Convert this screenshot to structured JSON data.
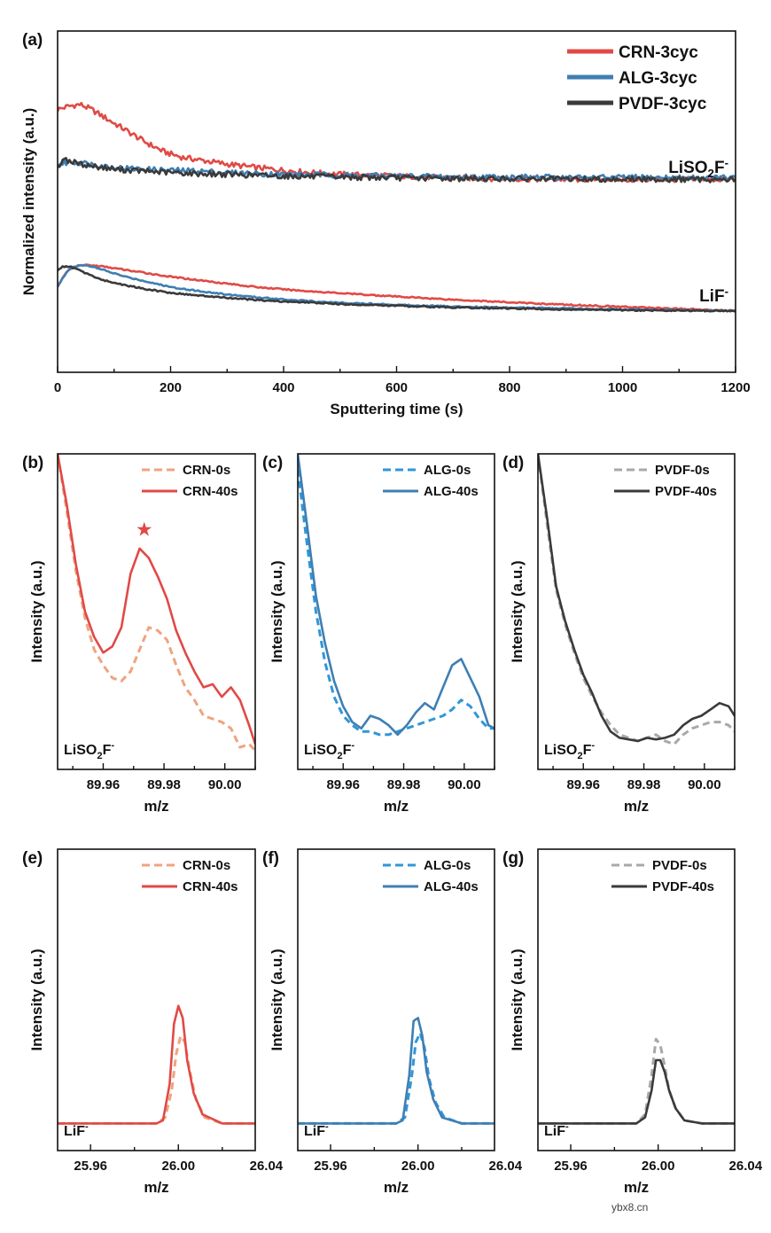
{
  "colors": {
    "crn": "#e04a46",
    "crn_light": "#f0a37f",
    "alg": "#3f7fb3",
    "alg_light": "#2f97d8",
    "pvdf": "#3a3a3a",
    "pvdf_light": "#a8a8a8"
  },
  "watermark": "ybx8.cn",
  "chart_data": [
    {
      "id": "a",
      "panel_label": "(a)",
      "type": "line",
      "xlabel": "Sputtering time (s)",
      "ylabel": "Normalized intensity (a.u.)",
      "xlim": [
        0,
        1200
      ],
      "ylim": [
        0,
        1
      ],
      "xticks": [
        0,
        200,
        400,
        600,
        800,
        1000,
        1200
      ],
      "xtick_labels": [
        "0",
        "200",
        "400",
        "600",
        "800",
        "1000",
        "1200"
      ],
      "species_labels": [
        {
          "base": "LiSO",
          "sub": "2",
          "rest": "F",
          "sup": "-"
        },
        {
          "base": "LiF",
          "sub": "",
          "rest": "",
          "sup": "-"
        }
      ],
      "series": [
        {
          "name": "CRN-3cyc",
          "color_key": "crn",
          "group": "LiSO2F-",
          "x": [
            0,
            20,
            40,
            60,
            80,
            100,
            130,
            160,
            190,
            220,
            260,
            300,
            350,
            400,
            450,
            500,
            600,
            700,
            800,
            900,
            1000,
            1100,
            1200
          ],
          "y": [
            0.77,
            0.78,
            0.785,
            0.77,
            0.75,
            0.73,
            0.7,
            0.67,
            0.645,
            0.63,
            0.62,
            0.61,
            0.6,
            0.592,
            0.585,
            0.58,
            0.575,
            0.57,
            0.567,
            0.565,
            0.565,
            0.565,
            0.565
          ]
        },
        {
          "name": "ALG-3cyc",
          "color_key": "alg",
          "group": "LiSO2F-",
          "x": [
            0,
            20,
            40,
            60,
            80,
            100,
            150,
            200,
            250,
            300,
            400,
            500,
            600,
            700,
            800,
            900,
            1000,
            1100,
            1200
          ],
          "y": [
            0.61,
            0.615,
            0.615,
            0.61,
            0.605,
            0.6,
            0.595,
            0.592,
            0.59,
            0.585,
            0.58,
            0.578,
            0.575,
            0.573,
            0.572,
            0.571,
            0.571,
            0.57,
            0.57
          ]
        },
        {
          "name": "PVDF-3cyc",
          "color_key": "pvdf",
          "group": "LiSO2F-",
          "x": [
            0,
            10,
            20,
            40,
            60,
            80,
            100,
            150,
            200,
            250,
            300,
            400,
            500,
            600,
            700,
            800,
            900,
            1000,
            1100,
            1200
          ],
          "y": [
            0.6,
            0.625,
            0.62,
            0.61,
            0.605,
            0.6,
            0.595,
            0.59,
            0.585,
            0.582,
            0.58,
            0.575,
            0.572,
            0.57,
            0.568,
            0.567,
            0.566,
            0.566,
            0.565,
            0.565
          ]
        },
        {
          "name": "CRN-3cyc",
          "color_key": "crn",
          "group": "LiF-",
          "x": [
            0,
            10,
            20,
            30,
            50,
            80,
            120,
            160,
            200,
            250,
            300,
            350,
            400,
            450,
            500,
            600,
            700,
            800,
            900,
            1000,
            1100,
            1200
          ],
          "y": [
            0.25,
            0.28,
            0.3,
            0.31,
            0.315,
            0.31,
            0.3,
            0.29,
            0.28,
            0.27,
            0.26,
            0.25,
            0.243,
            0.237,
            0.232,
            0.222,
            0.213,
            0.205,
            0.198,
            0.192,
            0.186,
            0.18
          ]
        },
        {
          "name": "ALG-3cyc",
          "color_key": "alg",
          "group": "LiF-",
          "x": [
            0,
            10,
            20,
            30,
            50,
            80,
            120,
            160,
            200,
            250,
            300,
            350,
            400,
            450,
            500,
            600,
            700,
            800,
            900,
            1000,
            1100,
            1200
          ],
          "y": [
            0.25,
            0.28,
            0.3,
            0.31,
            0.315,
            0.3,
            0.28,
            0.265,
            0.25,
            0.238,
            0.228,
            0.22,
            0.214,
            0.208,
            0.204,
            0.198,
            0.193,
            0.19,
            0.187,
            0.184,
            0.182,
            0.18
          ]
        },
        {
          "name": "PVDF-3cyc",
          "color_key": "pvdf",
          "group": "LiF-",
          "x": [
            0,
            10,
            20,
            30,
            50,
            80,
            120,
            160,
            200,
            250,
            300,
            350,
            400,
            450,
            500,
            600,
            700,
            800,
            900,
            1000,
            1100,
            1200
          ],
          "y": [
            0.3,
            0.31,
            0.31,
            0.305,
            0.29,
            0.27,
            0.255,
            0.243,
            0.233,
            0.225,
            0.218,
            0.212,
            0.207,
            0.204,
            0.2,
            0.195,
            0.19,
            0.187,
            0.184,
            0.182,
            0.181,
            0.18
          ]
        }
      ]
    },
    {
      "id": "b",
      "panel_label": "(b)",
      "type": "line",
      "xlabel": "m/z",
      "ylabel": "Intensity (a.u.)",
      "xlim": [
        89.945,
        90.01
      ],
      "ylim": [
        0,
        1
      ],
      "xticks": [
        89.96,
        89.98,
        90.0
      ],
      "xtick_labels": [
        "89.96",
        "89.98",
        "90.00"
      ],
      "species_label": {
        "base": "LiSO",
        "sub": "2",
        "rest": "F",
        "sup": "-"
      },
      "marker": {
        "symbol": "★",
        "x": 89.9735,
        "y": 0.735
      },
      "series": [
        {
          "name": "CRN-0s",
          "color_key": "crn_light",
          "dashed": true,
          "x": [
            89.945,
            89.948,
            89.951,
            89.954,
            89.957,
            89.96,
            89.963,
            89.966,
            89.969,
            89.972,
            89.975,
            89.978,
            89.981,
            89.984,
            89.987,
            89.99,
            89.993,
            89.996,
            89.999,
            90.002,
            90.005,
            90.008,
            90.01
          ],
          "y": [
            1.0,
            0.82,
            0.63,
            0.48,
            0.38,
            0.33,
            0.29,
            0.28,
            0.31,
            0.38,
            0.45,
            0.44,
            0.41,
            0.33,
            0.26,
            0.22,
            0.17,
            0.16,
            0.15,
            0.13,
            0.07,
            0.08,
            0.06
          ]
        },
        {
          "name": "CRN-40s",
          "color_key": "crn",
          "dashed": false,
          "x": [
            89.945,
            89.948,
            89.951,
            89.954,
            89.957,
            89.96,
            89.963,
            89.966,
            89.969,
            89.972,
            89.975,
            89.978,
            89.981,
            89.984,
            89.987,
            89.99,
            89.993,
            89.996,
            89.999,
            90.002,
            90.005,
            90.008,
            90.01
          ],
          "y": [
            1.0,
            0.84,
            0.65,
            0.5,
            0.42,
            0.37,
            0.39,
            0.45,
            0.62,
            0.7,
            0.67,
            0.61,
            0.54,
            0.44,
            0.37,
            0.31,
            0.26,
            0.27,
            0.23,
            0.26,
            0.22,
            0.14,
            0.08
          ]
        }
      ]
    },
    {
      "id": "c",
      "panel_label": "(c)",
      "type": "line",
      "xlabel": "m/z",
      "ylabel": "Intensity (a.u.)",
      "xlim": [
        89.945,
        90.01
      ],
      "ylim": [
        0,
        1
      ],
      "xticks": [
        89.96,
        89.98,
        90.0
      ],
      "xtick_labels": [
        "89.96",
        "89.98",
        "90.00"
      ],
      "species_label": {
        "base": "LiSO",
        "sub": "2",
        "rest": "F",
        "sup": "-"
      },
      "series": [
        {
          "name": "ALG-0s",
          "color_key": "alg_light",
          "dashed": true,
          "x": [
            89.945,
            89.948,
            89.951,
            89.954,
            89.957,
            89.96,
            89.963,
            89.966,
            89.969,
            89.972,
            89.975,
            89.978,
            89.981,
            89.984,
            89.987,
            89.99,
            89.993,
            89.996,
            89.999,
            90.002,
            90.005,
            90.008,
            90.01
          ],
          "y": [
            0.95,
            0.72,
            0.5,
            0.34,
            0.23,
            0.17,
            0.14,
            0.12,
            0.12,
            0.11,
            0.11,
            0.12,
            0.13,
            0.14,
            0.15,
            0.16,
            0.17,
            0.19,
            0.22,
            0.2,
            0.16,
            0.13,
            0.13
          ]
        },
        {
          "name": "ALG-40s",
          "color_key": "alg",
          "dashed": false,
          "x": [
            89.945,
            89.948,
            89.951,
            89.954,
            89.957,
            89.96,
            89.963,
            89.966,
            89.969,
            89.972,
            89.975,
            89.978,
            89.981,
            89.984,
            89.987,
            89.99,
            89.993,
            89.996,
            89.999,
            90.002,
            90.005,
            90.008,
            90.01
          ],
          "y": [
            1.0,
            0.78,
            0.55,
            0.4,
            0.28,
            0.2,
            0.15,
            0.13,
            0.17,
            0.16,
            0.14,
            0.11,
            0.14,
            0.18,
            0.21,
            0.19,
            0.26,
            0.33,
            0.35,
            0.29,
            0.23,
            0.14,
            0.13
          ]
        }
      ]
    },
    {
      "id": "d",
      "panel_label": "(d)",
      "type": "line",
      "xlabel": "m/z",
      "ylabel": "Intensity (a.u.)",
      "xlim": [
        89.945,
        90.01
      ],
      "ylim": [
        0,
        1
      ],
      "xticks": [
        89.96,
        89.98,
        90.0
      ],
      "xtick_labels": [
        "89.96",
        "89.98",
        "90.00"
      ],
      "species_label": {
        "base": "LiSO",
        "sub": "2",
        "rest": "F",
        "sup": "-"
      },
      "series": [
        {
          "name": "PVDF-0s",
          "color_key": "pvdf_light",
          "dashed": true,
          "x": [
            89.945,
            89.948,
            89.951,
            89.954,
            89.957,
            89.96,
            89.963,
            89.966,
            89.969,
            89.972,
            89.975,
            89.978,
            89.981,
            89.984,
            89.987,
            89.99,
            89.993,
            89.996,
            89.999,
            90.002,
            90.005,
            90.008,
            90.01
          ],
          "y": [
            1.0,
            0.78,
            0.57,
            0.46,
            0.37,
            0.29,
            0.23,
            0.18,
            0.14,
            0.11,
            0.1,
            0.09,
            0.1,
            0.11,
            0.09,
            0.08,
            0.11,
            0.13,
            0.14,
            0.15,
            0.15,
            0.14,
            0.12
          ]
        },
        {
          "name": "PVDF-40s",
          "color_key": "pvdf",
          "dashed": false,
          "x": [
            89.945,
            89.948,
            89.951,
            89.954,
            89.957,
            89.96,
            89.963,
            89.966,
            89.969,
            89.972,
            89.975,
            89.978,
            89.981,
            89.984,
            89.987,
            89.99,
            89.993,
            89.996,
            89.999,
            90.002,
            90.005,
            90.008,
            90.01
          ],
          "y": [
            1.0,
            0.8,
            0.58,
            0.47,
            0.38,
            0.3,
            0.24,
            0.17,
            0.12,
            0.1,
            0.095,
            0.09,
            0.1,
            0.095,
            0.1,
            0.11,
            0.14,
            0.16,
            0.17,
            0.19,
            0.21,
            0.2,
            0.17
          ]
        }
      ]
    },
    {
      "id": "e",
      "panel_label": "(e)",
      "type": "line",
      "xlabel": "m/z",
      "ylabel": "Intensity (a.u.)",
      "xlim": [
        25.945,
        26.035
      ],
      "ylim": [
        0,
        1
      ],
      "xticks": [
        25.96,
        26.0,
        26.04
      ],
      "xtick_labels": [
        "25.96",
        "26.00",
        "26.04"
      ],
      "species_label": {
        "base": "LiF",
        "sub": "",
        "rest": "",
        "sup": "-"
      },
      "series": [
        {
          "name": "CRN-0s",
          "color_key": "crn_light",
          "dashed": true,
          "x": [
            25.945,
            25.99,
            25.994,
            25.997,
            25.999,
            26.001,
            26.003,
            26.005,
            26.008,
            26.012,
            26.02,
            26.035
          ],
          "y": [
            0.09,
            0.09,
            0.11,
            0.2,
            0.32,
            0.38,
            0.36,
            0.27,
            0.17,
            0.11,
            0.09,
            0.09
          ]
        },
        {
          "name": "CRN-40s",
          "color_key": "crn",
          "dashed": false,
          "x": [
            25.945,
            25.99,
            25.993,
            25.996,
            25.998,
            26.0,
            26.002,
            26.004,
            26.007,
            26.011,
            26.02,
            26.035
          ],
          "y": [
            0.09,
            0.09,
            0.1,
            0.22,
            0.42,
            0.48,
            0.44,
            0.3,
            0.19,
            0.12,
            0.09,
            0.09
          ]
        }
      ]
    },
    {
      "id": "f",
      "panel_label": "(f)",
      "type": "line",
      "xlabel": "m/z",
      "ylabel": "Intensity (a.u.)",
      "xlim": [
        25.945,
        26.035
      ],
      "ylim": [
        0,
        1
      ],
      "xticks": [
        25.96,
        26.0,
        26.04
      ],
      "xtick_labels": [
        "25.96",
        "26.00",
        "26.04"
      ],
      "species_label": {
        "base": "LiF",
        "sub": "",
        "rest": "",
        "sup": "-"
      },
      "series": [
        {
          "name": "ALG-0s",
          "color_key": "alg_light",
          "dashed": true,
          "x": [
            25.945,
            25.99,
            25.994,
            25.997,
            25.999,
            26.001,
            26.003,
            26.005,
            26.008,
            26.012,
            26.02,
            26.035
          ],
          "y": [
            0.09,
            0.09,
            0.11,
            0.24,
            0.36,
            0.39,
            0.34,
            0.24,
            0.16,
            0.11,
            0.09,
            0.09
          ]
        },
        {
          "name": "ALG-40s",
          "color_key": "alg",
          "dashed": false,
          "x": [
            25.945,
            25.99,
            25.993,
            25.996,
            25.998,
            26.0,
            26.002,
            26.004,
            26.007,
            26.011,
            26.02,
            26.035
          ],
          "y": [
            0.09,
            0.09,
            0.1,
            0.25,
            0.43,
            0.44,
            0.38,
            0.26,
            0.17,
            0.11,
            0.09,
            0.09
          ]
        }
      ]
    },
    {
      "id": "g",
      "panel_label": "(g)",
      "type": "line",
      "xlabel": "m/z",
      "ylabel": "Intensity (a.u.)",
      "xlim": [
        25.945,
        26.035
      ],
      "ylim": [
        0,
        1
      ],
      "xticks": [
        25.96,
        26.0,
        26.04
      ],
      "xtick_labels": [
        "25.96",
        "26.00",
        "26.04"
      ],
      "species_label": {
        "base": "LiF",
        "sub": "",
        "rest": "",
        "sup": "-"
      },
      "series": [
        {
          "name": "PVDF-0s",
          "color_key": "pvdf_light",
          "dashed": true,
          "x": [
            25.945,
            25.99,
            25.994,
            25.997,
            25.999,
            26.001,
            26.003,
            26.005,
            26.008,
            26.012,
            26.02,
            26.035
          ],
          "y": [
            0.09,
            0.09,
            0.12,
            0.25,
            0.37,
            0.35,
            0.28,
            0.2,
            0.14,
            0.1,
            0.09,
            0.09
          ]
        },
        {
          "name": "PVDF-40s",
          "color_key": "pvdf",
          "dashed": false,
          "x": [
            25.945,
            25.99,
            25.994,
            25.997,
            25.999,
            26.001,
            26.003,
            26.005,
            26.008,
            26.012,
            26.02,
            26.035
          ],
          "y": [
            0.09,
            0.09,
            0.11,
            0.2,
            0.3,
            0.3,
            0.26,
            0.2,
            0.14,
            0.1,
            0.09,
            0.09
          ]
        }
      ]
    }
  ]
}
